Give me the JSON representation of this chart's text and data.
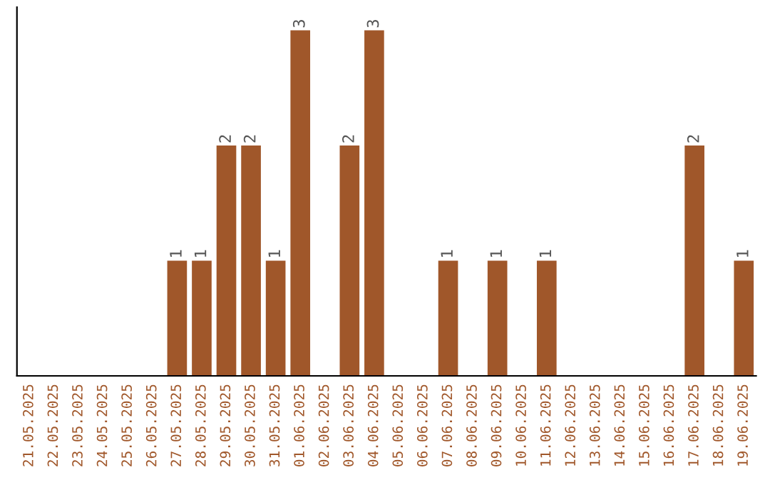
{
  "chart_data": {
    "type": "bar",
    "categories": [
      "21.05.2025",
      "22.05.2025",
      "23.05.2025",
      "24.05.2025",
      "25.05.2025",
      "26.05.2025",
      "27.05.2025",
      "28.05.2025",
      "29.05.2025",
      "30.05.2025",
      "31.05.2025",
      "01.06.2025",
      "02.06.2025",
      "03.06.2025",
      "04.06.2025",
      "05.06.2025",
      "06.06.2025",
      "07.06.2025",
      "08.06.2025",
      "09.06.2025",
      "10.06.2025",
      "11.06.2025",
      "12.06.2025",
      "13.06.2025",
      "14.06.2025",
      "15.06.2025",
      "16.06.2025",
      "17.06.2025",
      "18.06.2025",
      "19.06.2025"
    ],
    "values": [
      0,
      0,
      0,
      0,
      0,
      0,
      1,
      1,
      2,
      2,
      1,
      3,
      0,
      2,
      3,
      0,
      0,
      1,
      0,
      1,
      0,
      1,
      0,
      0,
      0,
      0,
      0,
      2,
      0,
      1
    ],
    "value_labels": [
      null,
      null,
      null,
      null,
      null,
      null,
      "1",
      "1",
      "2",
      "2",
      "1",
      "3",
      null,
      "2",
      "3",
      null,
      null,
      "1",
      null,
      "1",
      null,
      "1",
      null,
      null,
      null,
      null,
      null,
      "2",
      null,
      "1"
    ],
    "color": "#a0572a",
    "ylim": [
      0,
      3.2
    ],
    "tick_labels": "x",
    "grid": false,
    "legend": false
  }
}
